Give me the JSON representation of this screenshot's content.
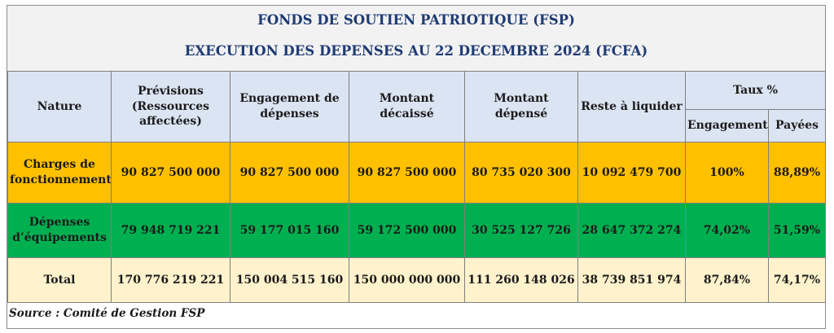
{
  "title": "FONDS DE SOUTIEN PATRIOTIQUE (FSP)",
  "subtitle": "EXECUTION DES DEPENSES AU 22 DECEMBRE 2024 (FCFA)",
  "headers": {
    "nature": "Nature",
    "previsions": "Prévisions (Ressources affectées)",
    "engagement": "Engagement de dépenses",
    "montant_decaisse": "Montant décaissé",
    "montant_depense": "Montant dépensé",
    "reste": "Reste à liquider",
    "taux": "Taux %",
    "taux_engagement": "Engagement",
    "taux_payees": "Payées"
  },
  "rows": [
    {
      "nature": "Charges de fonctionnement",
      "previsions": "90 827 500 000",
      "engagement": "90 827 500 000",
      "decaisse": "90 827 500 000",
      "depense": "80 735 020 300",
      "reste": "10 092 479 700",
      "taux_engagement": "100%",
      "taux_payees": "88,89%",
      "color": "#ffc000"
    },
    {
      "nature": "Dépenses d’équipements",
      "previsions": "79 948 719 221",
      "engagement": "59 177 015 160",
      "decaisse": "59 172 500 000",
      "depense": "30 525 127 726",
      "reste": "28 647 372 274",
      "taux_engagement": "74,02%",
      "taux_payees": "51,59%",
      "color": "#00b050"
    },
    {
      "nature": "Total",
      "previsions": "170 776 219 221",
      "engagement": "150 004 515 160",
      "decaisse": "150 000 000 000",
      "depense": "111 260 148 026",
      "reste": "38 739 851 974",
      "taux_engagement": "87,84%",
      "taux_payees": "74,17%",
      "color": "#fff2cc"
    }
  ],
  "source": "Source : Comité de Gestion FSP",
  "colors": {
    "title": "#1f3b73",
    "header_bg": "#dbe4f2"
  }
}
